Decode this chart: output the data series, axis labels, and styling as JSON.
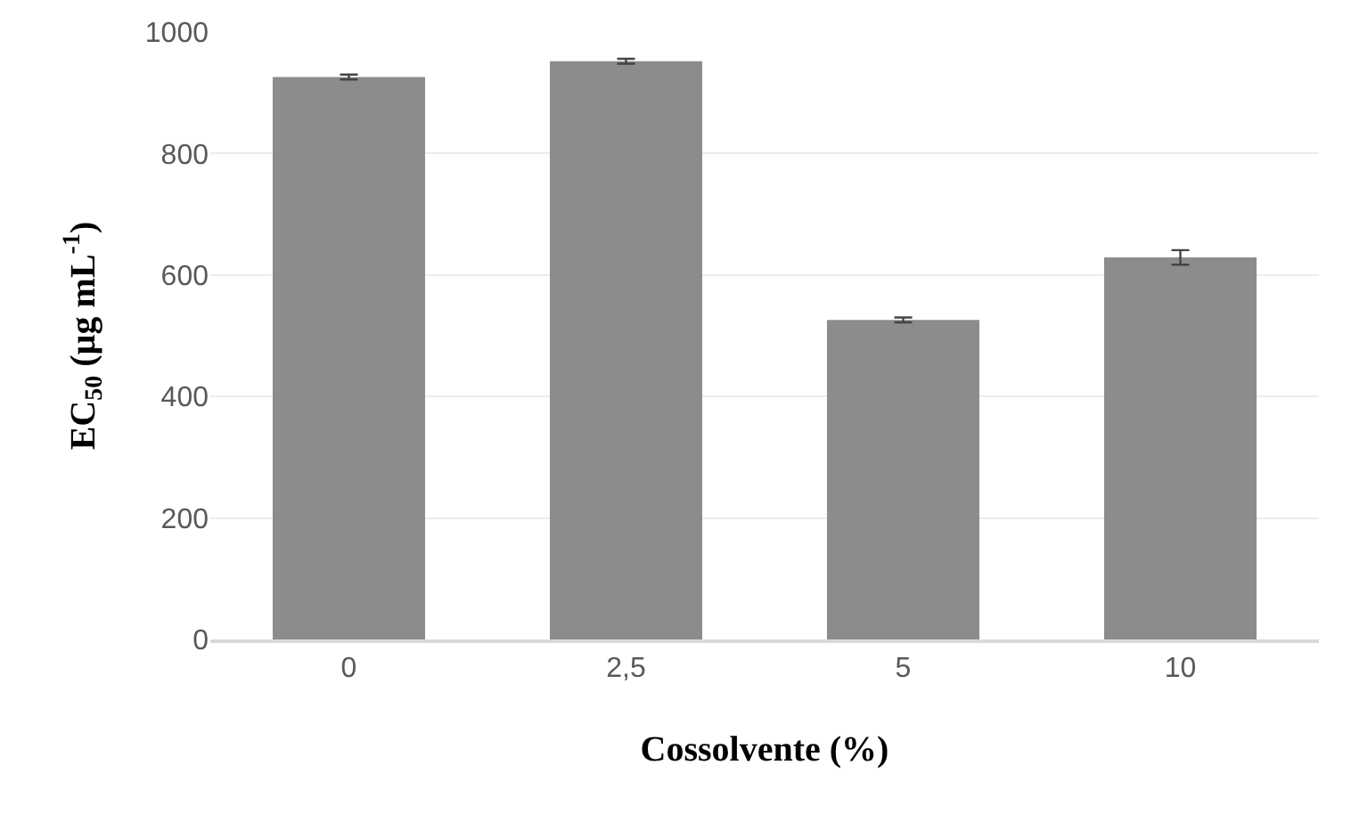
{
  "chart_data": {
    "type": "bar",
    "xlabel": "Cossolvente (%)",
    "ylabel": "EC$_{50}$ (µg mL$^{-1}$)",
    "categories": [
      "0",
      "2,5",
      "5",
      "10"
    ],
    "values": [
      926,
      952,
      526,
      629
    ],
    "errors": [
      4,
      4,
      4,
      12
    ],
    "color": "#8c8c8c",
    "ylim": [
      0,
      1000
    ],
    "yticks": [
      0,
      200,
      400,
      600,
      800,
      1000
    ],
    "grid": "y"
  }
}
